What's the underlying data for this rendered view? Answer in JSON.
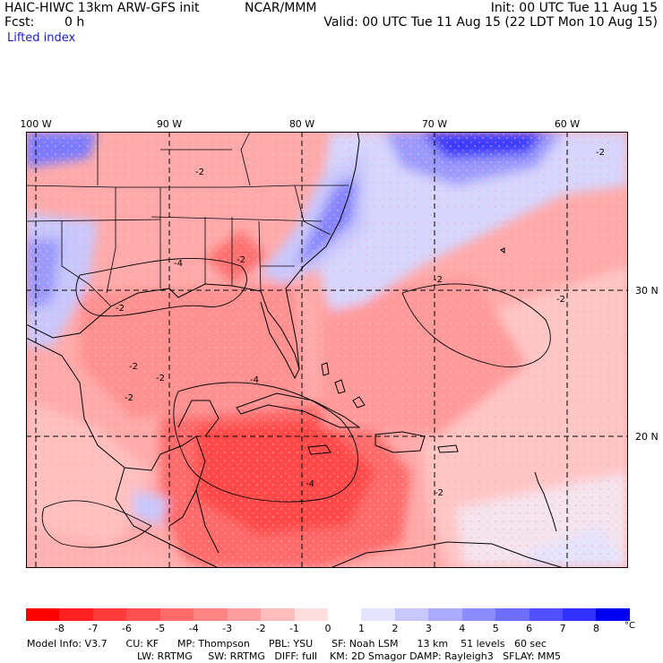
{
  "header": {
    "model_title": "HAIC-HIWC 13km ARW-GFS init",
    "agency": "NCAR/MMM",
    "fcst_label": "Fcst:",
    "fcst_value": "0 h",
    "field_name": "Lifted index",
    "init": "Init: 00 UTC Tue 11 Aug 15",
    "valid": "Valid: 00 UTC Tue 11 Aug 15 (22 LDT Mon 10 Aug 15)"
  },
  "map": {
    "lon_labels": [
      "100 W",
      "90 W",
      "80 W",
      "70 W",
      "60 W"
    ],
    "lat_labels": [
      "30 N",
      "20 N"
    ],
    "contour_labels": [
      "-2",
      "-4"
    ]
  },
  "colorbar": {
    "unit": "°C",
    "ticks": [
      "-8",
      "-7",
      "-6",
      "-5",
      "-4",
      "-3",
      "-2",
      "-1",
      "0",
      "1",
      "2",
      "3",
      "4",
      "5",
      "6",
      "7",
      "8"
    ],
    "colors": [
      "#ff0000",
      "#ff2020",
      "#ff3a3a",
      "#ff5050",
      "#ff6a6a",
      "#ff8484",
      "#ff9e9e",
      "#ffbcbc",
      "#ffdede",
      "#ffffff",
      "#e4e4ff",
      "#c8c8ff",
      "#aaaaff",
      "#8c8cff",
      "#6e6eff",
      "#5050ff",
      "#3030ff",
      "#0000f0"
    ]
  },
  "model_info": {
    "line1": "Model Info: V3.7      CU: KF      MP: Thompson      PBL: YSU      SF: Noah LSM      13 km    51 levels   60 sec",
    "line2": "LW: RRTMG     SW: RRTMG   DIFF: full    KM: 2D Smagor DAMP: Rayleigh3   SFLAY: MM5"
  }
}
